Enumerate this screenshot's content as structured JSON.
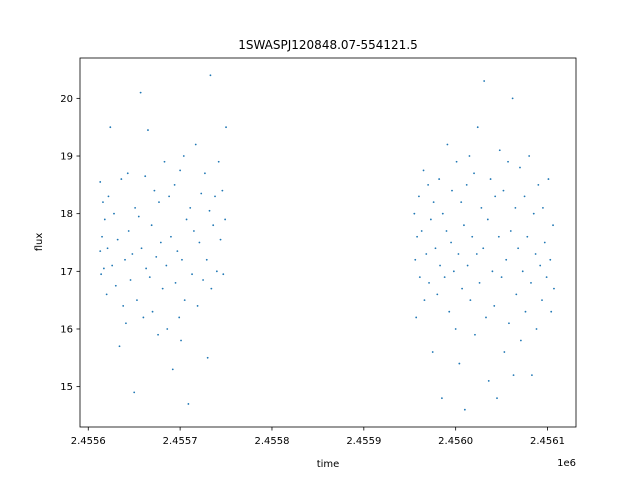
{
  "chart_data": {
    "type": "scatter",
    "title": "1SWASPJ120848.07-554121.5",
    "xlabel": "time",
    "ylabel": "flux",
    "x_offset_label": "1e6",
    "xlim": [
      2455591,
      2456131
    ],
    "ylim": [
      14.3,
      20.7
    ],
    "x_ticks": [
      2455600,
      2455700,
      2455800,
      2455900,
      2456000,
      2456100
    ],
    "x_tick_labels": [
      "2.4556",
      "2.4557",
      "2.4558",
      "2.4559",
      "2.4560",
      "2.4561"
    ],
    "y_ticks": [
      15,
      16,
      17,
      18,
      19,
      20
    ],
    "y_tick_labels": [
      "15",
      "16",
      "17",
      "18",
      "19",
      "20"
    ],
    "grid": false,
    "marker_color": "#1f77b4",
    "series": [
      {
        "name": "",
        "points": [
          [
            2455613,
            18.55
          ],
          [
            2455613,
            17.35
          ],
          [
            2455614,
            16.95
          ],
          [
            2455615,
            17.6
          ],
          [
            2455616,
            18.2
          ],
          [
            2455617,
            17.05
          ],
          [
            2455618,
            17.9
          ],
          [
            2455620,
            16.6
          ],
          [
            2455621,
            17.4
          ],
          [
            2455622,
            18.3
          ],
          [
            2455624,
            19.5
          ],
          [
            2455626,
            17.1
          ],
          [
            2455628,
            18.0
          ],
          [
            2455630,
            16.75
          ],
          [
            2455632,
            17.55
          ],
          [
            2455634,
            15.7
          ],
          [
            2455636,
            18.6
          ],
          [
            2455638,
            16.4
          ],
          [
            2455640,
            17.2
          ],
          [
            2455641,
            16.1
          ],
          [
            2455643,
            18.7
          ],
          [
            2455644,
            17.7
          ],
          [
            2455646,
            16.85
          ],
          [
            2455648,
            17.3
          ],
          [
            2455650,
            14.9
          ],
          [
            2455651,
            18.1
          ],
          [
            2455653,
            16.5
          ],
          [
            2455655,
            17.95
          ],
          [
            2455657,
            20.1
          ],
          [
            2455658,
            17.4
          ],
          [
            2455660,
            16.2
          ],
          [
            2455662,
            18.65
          ],
          [
            2455663,
            17.05
          ],
          [
            2455665,
            19.45
          ],
          [
            2455667,
            16.9
          ],
          [
            2455669,
            17.8
          ],
          [
            2455670,
            16.3
          ],
          [
            2455672,
            18.4
          ],
          [
            2455674,
            17.25
          ],
          [
            2455676,
            15.9
          ],
          [
            2455677,
            18.2
          ],
          [
            2455679,
            17.5
          ],
          [
            2455681,
            16.7
          ],
          [
            2455683,
            18.9
          ],
          [
            2455685,
            17.1
          ],
          [
            2455686,
            16.0
          ],
          [
            2455688,
            18.3
          ],
          [
            2455690,
            17.6
          ],
          [
            2455692,
            15.3
          ],
          [
            2455694,
            18.5
          ],
          [
            2455695,
            16.8
          ],
          [
            2455697,
            17.35
          ],
          [
            2455699,
            16.2
          ],
          [
            2455700,
            18.75
          ],
          [
            2455701,
            15.8
          ],
          [
            2455702,
            17.2
          ],
          [
            2455704,
            19.0
          ],
          [
            2455705,
            16.5
          ],
          [
            2455707,
            17.9
          ],
          [
            2455709,
            14.7
          ],
          [
            2455711,
            18.1
          ],
          [
            2455713,
            16.95
          ],
          [
            2455715,
            17.7
          ],
          [
            2455717,
            19.2
          ],
          [
            2455719,
            16.4
          ],
          [
            2455721,
            17.5
          ],
          [
            2455723,
            18.35
          ],
          [
            2455725,
            16.85
          ],
          [
            2455727,
            18.7
          ],
          [
            2455729,
            17.2
          ],
          [
            2455730,
            15.5
          ],
          [
            2455732,
            18.05
          ],
          [
            2455733,
            20.4
          ],
          [
            2455734,
            16.7
          ],
          [
            2455736,
            17.8
          ],
          [
            2455738,
            18.3
          ],
          [
            2455740,
            17.0
          ],
          [
            2455742,
            18.9
          ],
          [
            2455744,
            17.55
          ],
          [
            2455746,
            18.4
          ],
          [
            2455747,
            16.95
          ],
          [
            2455749,
            17.9
          ],
          [
            2455750,
            19.5
          ],
          [
            2455955,
            18.0
          ],
          [
            2455956,
            17.2
          ],
          [
            2455957,
            16.2
          ],
          [
            2455958,
            17.6
          ],
          [
            2455960,
            18.3
          ],
          [
            2455961,
            16.9
          ],
          [
            2455963,
            17.7
          ],
          [
            2455965,
            18.75
          ],
          [
            2455966,
            16.5
          ],
          [
            2455968,
            17.3
          ],
          [
            2455970,
            18.5
          ],
          [
            2455971,
            16.8
          ],
          [
            2455973,
            17.9
          ],
          [
            2455975,
            15.6
          ],
          [
            2455976,
            18.2
          ],
          [
            2455978,
            17.4
          ],
          [
            2455980,
            16.6
          ],
          [
            2455982,
            18.6
          ],
          [
            2455983,
            17.1
          ],
          [
            2455985,
            14.8
          ],
          [
            2455986,
            18.0
          ],
          [
            2455988,
            16.9
          ],
          [
            2455990,
            17.7
          ],
          [
            2455991,
            19.2
          ],
          [
            2455993,
            16.3
          ],
          [
            2455995,
            17.5
          ],
          [
            2455996,
            18.4
          ],
          [
            2455998,
            17.0
          ],
          [
            2456000,
            16.0
          ],
          [
            2456001,
            18.9
          ],
          [
            2456003,
            17.3
          ],
          [
            2456004,
            15.4
          ],
          [
            2456006,
            18.2
          ],
          [
            2456007,
            16.7
          ],
          [
            2456009,
            17.8
          ],
          [
            2456010,
            14.6
          ],
          [
            2456012,
            18.5
          ],
          [
            2456013,
            17.1
          ],
          [
            2456015,
            19.0
          ],
          [
            2456016,
            16.5
          ],
          [
            2456018,
            17.6
          ],
          [
            2456020,
            18.7
          ],
          [
            2456021,
            15.9
          ],
          [
            2456023,
            17.3
          ],
          [
            2456024,
            19.5
          ],
          [
            2456026,
            16.8
          ],
          [
            2456028,
            18.1
          ],
          [
            2456030,
            17.4
          ],
          [
            2456031,
            20.3
          ],
          [
            2456033,
            16.2
          ],
          [
            2456035,
            17.9
          ],
          [
            2456036,
            15.1
          ],
          [
            2456038,
            18.6
          ],
          [
            2456040,
            17.0
          ],
          [
            2456042,
            16.4
          ],
          [
            2456043,
            18.3
          ],
          [
            2456045,
            14.8
          ],
          [
            2456047,
            17.6
          ],
          [
            2456048,
            19.1
          ],
          [
            2456050,
            16.9
          ],
          [
            2456052,
            18.4
          ],
          [
            2456053,
            15.6
          ],
          [
            2456055,
            17.2
          ],
          [
            2456057,
            18.9
          ],
          [
            2456058,
            16.1
          ],
          [
            2456060,
            17.7
          ],
          [
            2456062,
            20.0
          ],
          [
            2456063,
            15.2
          ],
          [
            2456065,
            18.1
          ],
          [
            2456066,
            16.6
          ],
          [
            2456068,
            17.4
          ],
          [
            2456070,
            18.8
          ],
          [
            2456071,
            15.8
          ],
          [
            2456073,
            17.0
          ],
          [
            2456075,
            18.3
          ],
          [
            2456076,
            16.3
          ],
          [
            2456078,
            17.6
          ],
          [
            2456080,
            19.0
          ],
          [
            2456082,
            16.8
          ],
          [
            2456083,
            15.2
          ],
          [
            2456085,
            18.0
          ],
          [
            2456087,
            17.3
          ],
          [
            2456088,
            16.0
          ],
          [
            2456090,
            18.5
          ],
          [
            2456092,
            17.1
          ],
          [
            2456094,
            16.5
          ],
          [
            2456095,
            18.1
          ],
          [
            2456097,
            17.5
          ],
          [
            2456099,
            16.9
          ],
          [
            2456101,
            18.6
          ],
          [
            2456103,
            17.2
          ],
          [
            2456104,
            16.3
          ],
          [
            2456106,
            17.8
          ],
          [
            2456107,
            16.7
          ]
        ]
      }
    ]
  }
}
